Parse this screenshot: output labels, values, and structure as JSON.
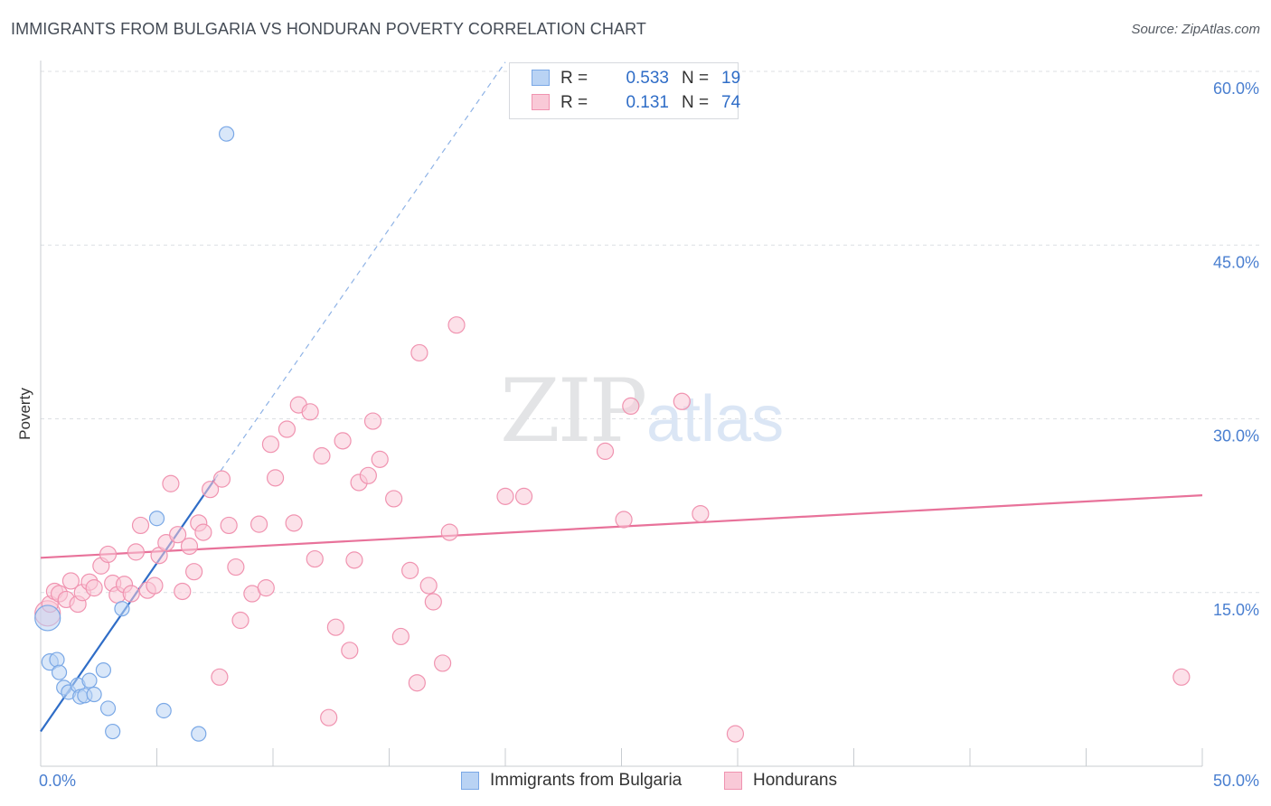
{
  "header": {
    "title": "IMMIGRANTS FROM BULGARIA VS HONDURAN POVERTY CORRELATION CHART",
    "source": "Source: ZipAtlas.com"
  },
  "watermark": {
    "zip": "ZIP",
    "atlas": "atlas"
  },
  "legend": {
    "series": [
      {
        "r_label": "R =",
        "r_value": "0.533",
        "n_label": "N =",
        "n_value": "19",
        "color": "#7aa8e6",
        "fill": "#b9d3f4"
      },
      {
        "r_label": "R =",
        "r_value": "0.131",
        "n_label": "N =",
        "n_value": "74",
        "color": "#f093b0",
        "fill": "#f9c9d7"
      }
    ]
  },
  "bottom_legend": {
    "items": [
      {
        "label": "Immigrants from Bulgaria",
        "color": "#7aa8e6",
        "fill": "#b9d3f4"
      },
      {
        "label": "Hondurans",
        "color": "#f093b0",
        "fill": "#f9c9d7"
      }
    ]
  },
  "chart_data": {
    "type": "scatter",
    "title": "IMMIGRANTS FROM BULGARIA VS HONDURAN POVERTY CORRELATION CHART",
    "xlabel": "",
    "ylabel": "Poverty",
    "xlim": [
      0,
      50
    ],
    "ylim": [
      0,
      60
    ],
    "x_tick_labels": [
      "0.0%",
      "50.0%"
    ],
    "y_ticks": [
      15,
      30,
      45,
      60
    ],
    "y_tick_labels": [
      "15.0%",
      "30.0%",
      "45.0%",
      "60.0%"
    ],
    "grid": true,
    "series": [
      {
        "name": "Immigrants from Bulgaria",
        "color": "#7aa8e6",
        "fill": "#b9d3f4",
        "points": [
          [
            0.3,
            12.8,
            14
          ],
          [
            0.4,
            9.0,
            9
          ],
          [
            0.7,
            9.2,
            8
          ],
          [
            0.8,
            8.1,
            8
          ],
          [
            1.0,
            6.8,
            8
          ],
          [
            1.2,
            6.4,
            8
          ],
          [
            1.6,
            7.0,
            8
          ],
          [
            1.7,
            6.0,
            8
          ],
          [
            1.9,
            6.1,
            8
          ],
          [
            2.1,
            7.4,
            8
          ],
          [
            2.3,
            6.2,
            8
          ],
          [
            2.7,
            8.3,
            8
          ],
          [
            2.9,
            5.0,
            8
          ],
          [
            3.1,
            3.0,
            8
          ],
          [
            3.5,
            13.6,
            8
          ],
          [
            5.0,
            21.4,
            8
          ],
          [
            5.3,
            4.8,
            8
          ],
          [
            6.8,
            2.8,
            8
          ],
          [
            8.0,
            54.6,
            8
          ]
        ],
        "trend": {
          "x1": 0.0,
          "y1": 3.0,
          "x2": 7.5,
          "y2": 24.8,
          "dash_to_x": 20.0,
          "dash_to_y": 60.8
        }
      },
      {
        "name": "Hondurans",
        "color": "#f093b0",
        "fill": "#f9c9d7",
        "points": [
          [
            0.3,
            13.2,
            14
          ],
          [
            0.4,
            14.0,
            9
          ],
          [
            0.6,
            15.1,
            9
          ],
          [
            0.8,
            14.9,
            9
          ],
          [
            1.1,
            14.4,
            9
          ],
          [
            1.3,
            16.0,
            9
          ],
          [
            1.6,
            14.0,
            9
          ],
          [
            1.8,
            15.0,
            9
          ],
          [
            2.1,
            15.9,
            9
          ],
          [
            2.3,
            15.4,
            9
          ],
          [
            2.6,
            17.3,
            9
          ],
          [
            2.9,
            18.3,
            9
          ],
          [
            3.1,
            15.8,
            9
          ],
          [
            3.3,
            14.8,
            9
          ],
          [
            3.6,
            15.7,
            9
          ],
          [
            3.9,
            14.9,
            9
          ],
          [
            4.1,
            18.5,
            9
          ],
          [
            4.3,
            20.8,
            9
          ],
          [
            4.6,
            15.2,
            9
          ],
          [
            4.9,
            15.6,
            9
          ],
          [
            5.1,
            18.2,
            9
          ],
          [
            5.4,
            19.3,
            9
          ],
          [
            5.6,
            24.4,
            9
          ],
          [
            5.9,
            20.0,
            9
          ],
          [
            6.1,
            15.1,
            9
          ],
          [
            6.4,
            19.0,
            9
          ],
          [
            6.6,
            16.8,
            9
          ],
          [
            6.8,
            21.0,
            9
          ],
          [
            7.0,
            20.2,
            9
          ],
          [
            7.3,
            23.9,
            9
          ],
          [
            7.7,
            7.7,
            9
          ],
          [
            7.8,
            24.8,
            9
          ],
          [
            8.1,
            20.8,
            9
          ],
          [
            8.4,
            17.2,
            9
          ],
          [
            8.6,
            12.6,
            9
          ],
          [
            9.1,
            14.9,
            9
          ],
          [
            9.4,
            20.9,
            9
          ],
          [
            9.7,
            15.4,
            9
          ],
          [
            9.9,
            27.8,
            9
          ],
          [
            10.1,
            24.9,
            9
          ],
          [
            10.6,
            29.1,
            9
          ],
          [
            10.9,
            21.0,
            9
          ],
          [
            11.1,
            31.2,
            9
          ],
          [
            11.6,
            30.6,
            9
          ],
          [
            11.8,
            17.9,
            9
          ],
          [
            12.1,
            26.8,
            9
          ],
          [
            12.4,
            4.2,
            9
          ],
          [
            12.7,
            12.0,
            9
          ],
          [
            13.0,
            28.1,
            9
          ],
          [
            13.3,
            10.0,
            9
          ],
          [
            13.5,
            17.8,
            9
          ],
          [
            13.7,
            24.5,
            9
          ],
          [
            14.1,
            25.1,
            9
          ],
          [
            14.3,
            29.8,
            9
          ],
          [
            14.6,
            26.5,
            9
          ],
          [
            15.2,
            23.1,
            9
          ],
          [
            15.5,
            11.2,
            9
          ],
          [
            15.9,
            16.9,
            9
          ],
          [
            16.2,
            7.2,
            9
          ],
          [
            16.3,
            35.7,
            9
          ],
          [
            16.7,
            15.6,
            9
          ],
          [
            16.9,
            14.2,
            9
          ],
          [
            17.3,
            8.9,
            9
          ],
          [
            17.6,
            20.2,
            9
          ],
          [
            17.9,
            38.1,
            9
          ],
          [
            20.0,
            23.3,
            9
          ],
          [
            20.8,
            23.3,
            9
          ],
          [
            24.3,
            27.2,
            9
          ],
          [
            25.1,
            21.3,
            9
          ],
          [
            25.4,
            31.1,
            9
          ],
          [
            27.6,
            31.5,
            9
          ],
          [
            28.4,
            21.8,
            9
          ],
          [
            29.9,
            2.8,
            9
          ],
          [
            49.1,
            7.7,
            9
          ]
        ],
        "trend": {
          "x1": 0.0,
          "y1": 18.0,
          "x2": 50.0,
          "y2": 23.4
        }
      }
    ]
  }
}
